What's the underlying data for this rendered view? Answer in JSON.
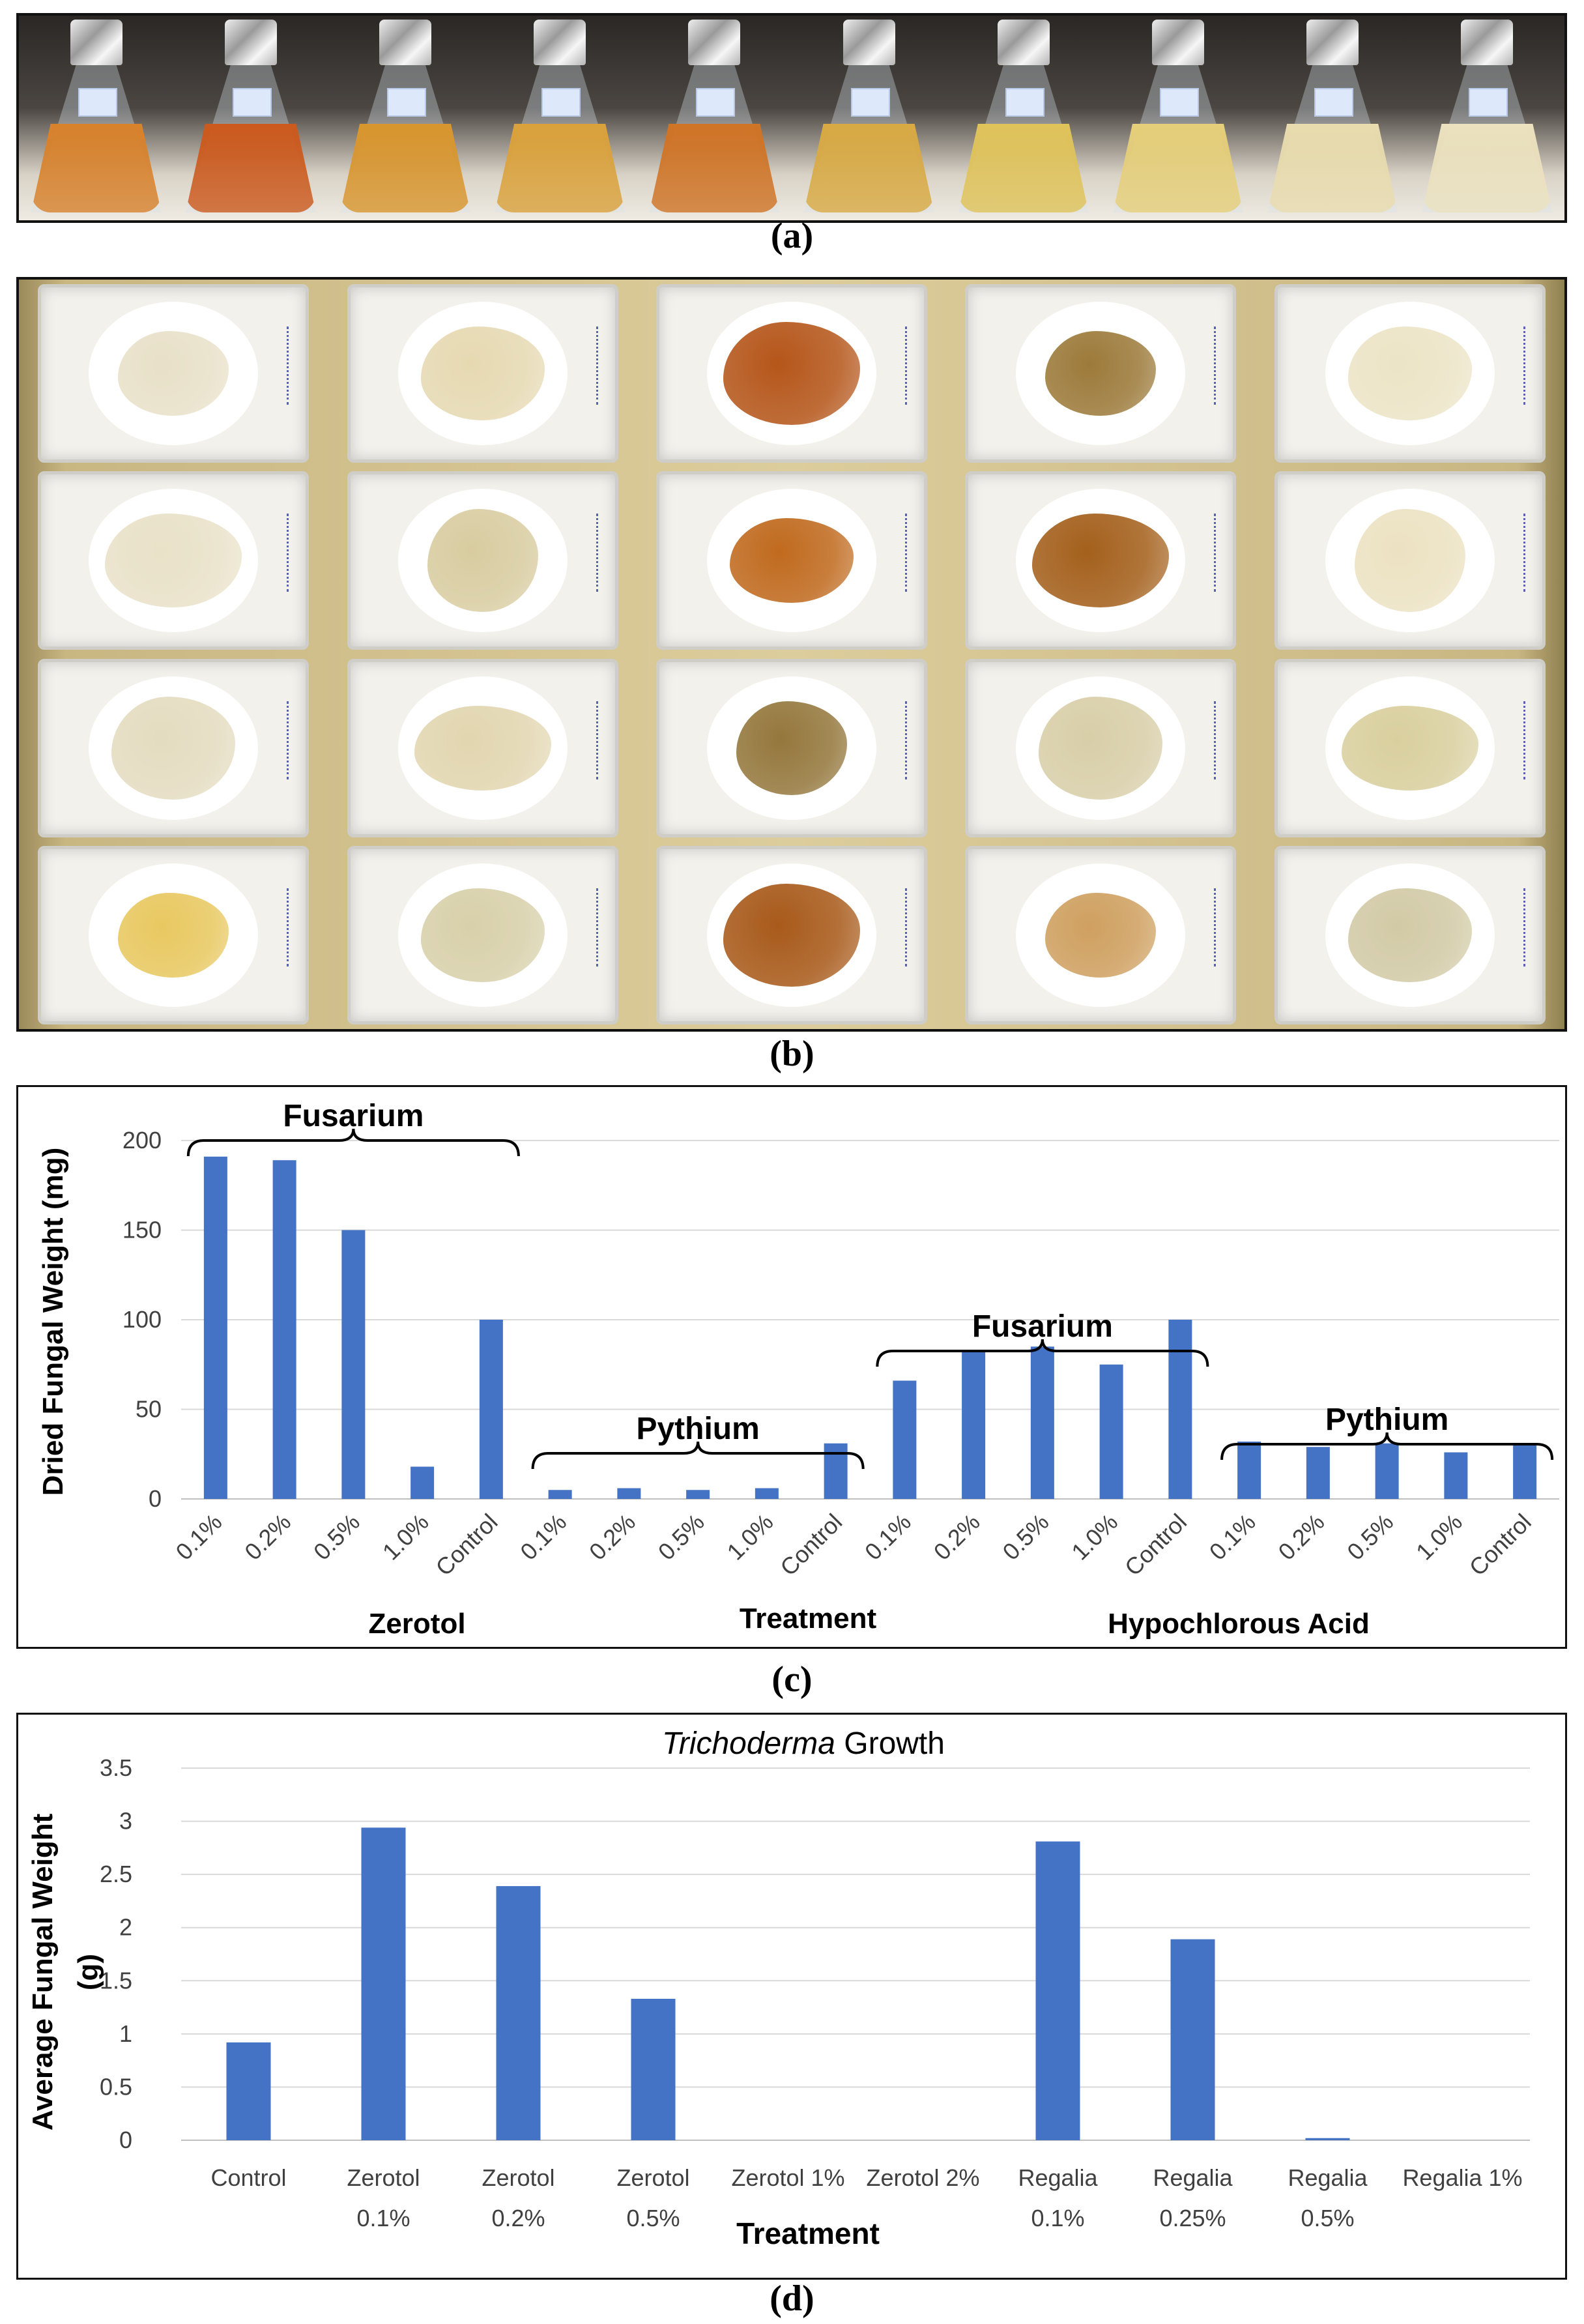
{
  "captions": {
    "a": "(a)",
    "b": "(b)",
    "c": "(c)",
    "d": "(d)"
  },
  "colors": {
    "bar": "#4472c4",
    "grid": "#d9d9d9",
    "axis_text": "#404040"
  },
  "photo_a": {
    "flask_liquid_colors": [
      "#d8822c",
      "#cc5a1e",
      "#d9962e",
      "#dba23c",
      "#d07426",
      "#d9aa44",
      "#e0c35a",
      "#e6cf7a",
      "#e9dcae",
      "#ece2bf"
    ]
  },
  "photo_b": {
    "rows": [
      [
        "#e8e0c8",
        "#e6d9b2",
        "#b5561a",
        "#9c7a3a",
        "#ece4c6"
      ],
      [
        "#e9e1c8",
        "#d8cca0",
        "#c06a1e",
        "#a4601c",
        "#ece2c2"
      ],
      [
        "#e4dcc0",
        "#e2d6b0",
        "#94773c",
        "#d8cea8",
        "#d9cf9e"
      ],
      [
        "#e8c860",
        "#d8d0aa",
        "#a85a1a",
        "#cfa060",
        "#d2caa6"
      ]
    ]
  },
  "chart_data": [
    {
      "type": "bar",
      "ylabel": "Dried Fungal Weight (mg)",
      "ylim": [
        0,
        200
      ],
      "yticks": [
        "0",
        "50",
        "100",
        "150",
        "200"
      ],
      "categories": [
        "0.1%",
        "0.2%",
        "0.5%",
        "1.0%",
        "Control",
        "0.1%",
        "0.2%",
        "0.5%",
        "1.0%",
        "Control",
        "0.1%",
        "0.2%",
        "0.5%",
        "1.0%",
        "Control",
        "0.1%",
        "0.2%",
        "0.5%",
        "1.0%",
        "Control"
      ],
      "values": [
        191,
        189,
        150,
        18,
        100,
        5,
        6,
        5,
        6,
        31,
        66,
        83,
        85,
        75,
        100,
        32,
        29,
        31,
        26,
        30
      ],
      "groups": [
        {
          "label": "Fusarium",
          "from": 0,
          "to": 4
        },
        {
          "label": "Pythium",
          "from": 5,
          "to": 9
        },
        {
          "label": "Fusarium",
          "from": 10,
          "to": 14
        },
        {
          "label": "Pythium",
          "from": 15,
          "to": 19
        }
      ],
      "bottom_labels": {
        "left": "Zerotol",
        "center": "Treatment",
        "right": "Hypochlorous Acid"
      }
    },
    {
      "type": "bar",
      "title_italic": "Trichoderma",
      "title_rest": " Growth",
      "ylabel_line1": "Average Fungal Weight",
      "ylabel_line2": "(g)",
      "xlabel": "Treatment",
      "ylim": [
        0,
        3.5
      ],
      "yticks": [
        "0",
        "0.5",
        "1",
        "1.5",
        "2",
        "2.5",
        "3",
        "3.5"
      ],
      "categories": [
        {
          "line1": "Control",
          "line2": ""
        },
        {
          "line1": "Zerotol",
          "line2": "0.1%"
        },
        {
          "line1": "Zerotol",
          "line2": "0.2%"
        },
        {
          "line1": "Zerotol",
          "line2": "0.5%"
        },
        {
          "line1": "Zerotol 1%",
          "line2": ""
        },
        {
          "line1": "Zerotol 2%",
          "line2": ""
        },
        {
          "line1": "Regalia",
          "line2": "0.1%"
        },
        {
          "line1": "Regalia",
          "line2": "0.25%"
        },
        {
          "line1": "Regalia",
          "line2": "0.5%"
        },
        {
          "line1": "Regalia 1%",
          "line2": ""
        }
      ],
      "values": [
        0.92,
        2.94,
        2.39,
        1.33,
        0,
        0,
        2.81,
        1.89,
        0.02,
        0
      ]
    }
  ]
}
